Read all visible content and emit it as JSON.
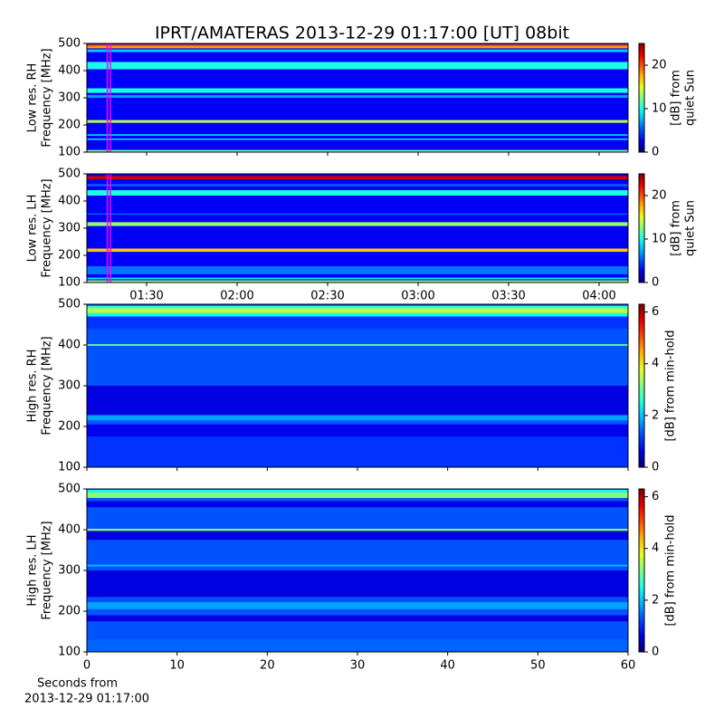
{
  "chart_data": [
    {
      "type": "spectrogram",
      "title": "IPRT/AMATERAS 2013-12-29 01:17:00 [UT]   08bit",
      "ylabel": [
        "Low res. RH",
        "Frequency [MHz]"
      ],
      "colorbar_label": [
        "[dB] from",
        "quiet Sun"
      ],
      "colormap": "jet",
      "clim": [
        0,
        25
      ],
      "cticks": [
        0,
        10,
        20
      ],
      "xlim": [
        70.2,
        249.6
      ],
      "xticks": [
        90,
        120,
        150,
        180,
        210,
        240
      ],
      "show_xtick_labels": false,
      "ylim": [
        100,
        500
      ],
      "yticks": [
        100,
        200,
        300,
        400,
        500
      ],
      "background": 3,
      "vlines": [
        77,
        78
      ],
      "vline_color": "#ff00ff",
      "bands": [
        [
          100,
          108,
          12
        ],
        [
          145,
          150,
          9
        ],
        [
          160,
          166,
          8
        ],
        [
          208,
          218,
          14
        ],
        [
          300,
          310,
          7
        ],
        [
          318,
          335,
          10
        ],
        [
          405,
          432,
          10
        ],
        [
          468,
          478,
          8
        ],
        [
          482,
          490,
          18
        ],
        [
          490,
          496,
          20
        ]
      ]
    },
    {
      "type": "spectrogram",
      "ylabel": [
        "Low res. LH",
        "Frequency [MHz]"
      ],
      "colorbar_label": [
        "[dB] from",
        "quiet Sun"
      ],
      "colormap": "jet",
      "clim": [
        0,
        25
      ],
      "cticks": [
        0,
        10,
        20
      ],
      "xlim": [
        70.2,
        249.6
      ],
      "xticks": [
        {
          "value": 90,
          "label": "01:30"
        },
        {
          "value": 120,
          "label": "02:00"
        },
        {
          "value": 150,
          "label": "02:30"
        },
        {
          "value": 180,
          "label": "03:00"
        },
        {
          "value": 210,
          "label": "03:30"
        },
        {
          "value": 240,
          "label": "04:00"
        }
      ],
      "show_xtick_labels": true,
      "ylim": [
        100,
        500
      ],
      "yticks": [
        100,
        200,
        300,
        400,
        500
      ],
      "background": 3,
      "vlines": [
        77,
        78
      ],
      "vline_color": "#ff00ff",
      "bands": [
        [
          100,
          108,
          13
        ],
        [
          112,
          118,
          9
        ],
        [
          130,
          160,
          6
        ],
        [
          213,
          225,
          17
        ],
        [
          308,
          322,
          13
        ],
        [
          350,
          354,
          6
        ],
        [
          420,
          440,
          10
        ],
        [
          455,
          462,
          6
        ],
        [
          480,
          492,
          23
        ]
      ]
    },
    {
      "type": "spectrogram",
      "ylabel": [
        "High res. RH",
        "Frequency [MHz]"
      ],
      "colorbar_label": [
        "[dB] from min-hold"
      ],
      "colormap": "jet",
      "clim": [
        0,
        6.3
      ],
      "cticks": [
        0,
        2,
        4,
        6
      ],
      "xlim": [
        0,
        60
      ],
      "xticks": [
        0,
        10,
        20,
        30,
        40,
        50,
        60
      ],
      "show_xtick_labels": false,
      "ylim": [
        100,
        500
      ],
      "yticks": [
        100,
        200,
        300,
        400,
        500
      ],
      "background": 1.3,
      "bands": [
        [
          100,
          175,
          1.1
        ],
        [
          175,
          205,
          0.7
        ],
        [
          215,
          228,
          1.8
        ],
        [
          228,
          300,
          0.6
        ],
        [
          398,
          402,
          3
        ],
        [
          440,
          470,
          1.1
        ],
        [
          470,
          478,
          2.4
        ],
        [
          478,
          490,
          3.5
        ],
        [
          490,
          496,
          2.6
        ]
      ]
    },
    {
      "type": "spectrogram",
      "ylabel": [
        "High res. LH",
        "Frequency [MHz]"
      ],
      "colorbar_label": [
        "[dB] from min-hold"
      ],
      "colormap": "jet",
      "clim": [
        0,
        6.3
      ],
      "cticks": [
        0,
        2,
        4,
        6
      ],
      "xlim": [
        0,
        60
      ],
      "xticks": [
        0,
        10,
        20,
        30,
        40,
        50,
        60
      ],
      "show_xtick_labels": true,
      "xlabel": [
        "Seconds from",
        "2013-12-29 01:17:00"
      ],
      "ylim": [
        100,
        500
      ],
      "yticks": [
        100,
        200,
        300,
        400,
        500
      ],
      "background": 1.3,
      "bands": [
        [
          100,
          130,
          1.4
        ],
        [
          175,
          190,
          0.6
        ],
        [
          205,
          222,
          1.8
        ],
        [
          235,
          300,
          0.6
        ],
        [
          310,
          314,
          2
        ],
        [
          375,
          395,
          0.6
        ],
        [
          398,
          402,
          3.5
        ],
        [
          455,
          470,
          0.7
        ],
        [
          478,
          492,
          3.2
        ],
        [
          492,
          498,
          2.4
        ]
      ]
    }
  ]
}
